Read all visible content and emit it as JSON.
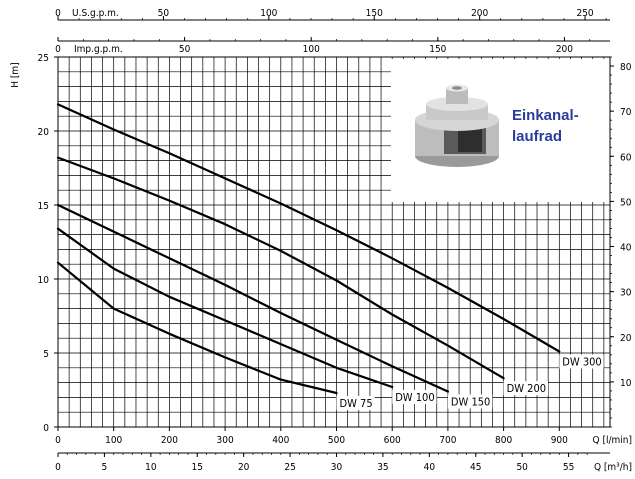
{
  "chart_data": {
    "type": "line",
    "title": "",
    "xlabel": "Q [l/min]",
    "ylabel": "H [m]",
    "xlim": [
      0,
      1000
    ],
    "ylim": [
      0,
      25
    ],
    "x_ticks": [
      "0",
      "100",
      "200",
      "300",
      "400",
      "500",
      "600",
      "700",
      "800",
      "900"
    ],
    "y_ticks": [
      "0",
      "5",
      "10",
      "15",
      "20",
      "25"
    ],
    "right_axis": {
      "label": "",
      "range": [
        0,
        82
      ],
      "ticks": [
        "10",
        "20",
        "30",
        "40",
        "50",
        "60",
        "70",
        "80"
      ]
    },
    "top_axis_usgpm": {
      "label": "U.S.g.p.m.",
      "ticks": [
        "0",
        "50",
        "100",
        "150",
        "200",
        "250"
      ]
    },
    "top_axis_impgpm": {
      "label": "Imp.g.p.m.",
      "ticks": [
        "0",
        "50",
        "100",
        "150",
        "200"
      ]
    },
    "bottom_axis_m3h": {
      "label": "Q [m³/h]",
      "ticks": [
        "0",
        "5",
        "10",
        "15",
        "20",
        "25",
        "30",
        "35",
        "40",
        "45",
        "50",
        "55"
      ]
    },
    "series": [
      {
        "name": "DW 75",
        "x": [
          0,
          100,
          200,
          300,
          400,
          500
        ],
        "y": [
          11.1,
          8.0,
          6.3,
          4.7,
          3.2,
          2.3
        ]
      },
      {
        "name": "DW 100",
        "x": [
          0,
          100,
          200,
          300,
          400,
          500,
          600
        ],
        "y": [
          13.4,
          10.7,
          8.8,
          7.2,
          5.6,
          4.0,
          2.7
        ]
      },
      {
        "name": "DW 150",
        "x": [
          0,
          100,
          200,
          300,
          400,
          500,
          600,
          700
        ],
        "y": [
          15.0,
          13.2,
          11.4,
          9.6,
          7.7,
          5.9,
          4.1,
          2.4
        ]
      },
      {
        "name": "DW 200",
        "x": [
          0,
          100,
          200,
          300,
          400,
          500,
          600,
          700,
          800
        ],
        "y": [
          18.2,
          16.8,
          15.3,
          13.7,
          11.9,
          9.9,
          7.6,
          5.5,
          3.3
        ]
      },
      {
        "name": "DW 300",
        "x": [
          0,
          100,
          200,
          300,
          400,
          500,
          600,
          700,
          800,
          900
        ],
        "y": [
          21.8,
          20.1,
          18.5,
          16.8,
          15.1,
          13.3,
          11.4,
          9.4,
          7.3,
          5.1
        ]
      }
    ],
    "grid": true
  },
  "inset": {
    "title_line1": "Einkanal-",
    "title_line2": "laufrad"
  }
}
